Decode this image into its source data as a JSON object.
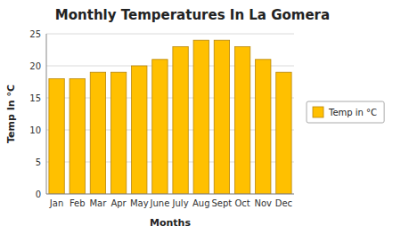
{
  "chart_data": {
    "type": "bar",
    "title": "Monthly Temperatures In La Gomera",
    "xlabel": "Months",
    "ylabel": "Temp In °C",
    "categories": [
      "Jan",
      "Feb",
      "Mar",
      "Apr",
      "May",
      "June",
      "July",
      "Aug",
      "Sept",
      "Oct",
      "Nov",
      "Dec"
    ],
    "series": [
      {
        "name": "Temp in °C",
        "color": "#FFC000",
        "values": [
          18,
          18,
          19,
          19,
          20,
          21,
          23,
          24,
          24,
          23,
          21,
          19
        ]
      }
    ],
    "ylim": [
      0,
      25
    ],
    "yticks": [
      0,
      5,
      10,
      15,
      20,
      25
    ],
    "grid": true,
    "legend": "right"
  }
}
